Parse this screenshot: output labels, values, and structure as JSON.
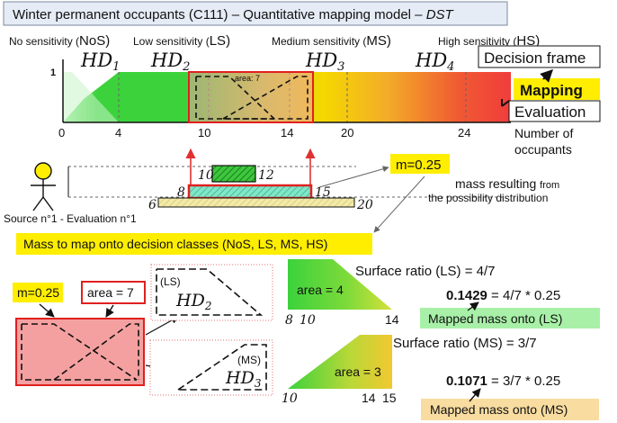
{
  "title": {
    "main": "Winter permanent occupants (C111) – Quantitative mapping model – ",
    "italic": "DST"
  },
  "sensitivity_labels": {
    "nos": {
      "prefix": "No sensitivity (",
      "code": "NoS",
      "suffix": ")"
    },
    "ls": {
      "prefix": "Low sensitivity (",
      "code": "LS",
      "suffix": ")"
    },
    "ms": {
      "prefix": "Medium sensitivity (",
      "code": "MS",
      "suffix": ")"
    },
    "hs": {
      "prefix": "High sensitivity (",
      "code": "HS",
      "suffix": ")"
    }
  },
  "hd_labels": {
    "hd1": "HD",
    "hd1_sub": "1",
    "hd2": "HD",
    "hd2_sub": "2",
    "hd3": "HD",
    "hd3_sub": "3",
    "hd4": "HD",
    "hd4_sub": "4"
  },
  "chart": {
    "y_tick": "1",
    "x_ticks": [
      "0",
      "4",
      "10",
      "14",
      "20",
      "24"
    ],
    "x_label_line1": "Number of",
    "x_label_line2": "occupants",
    "area_annotation": "area: 7"
  },
  "frame_labels": {
    "decision_frame": "Decision frame",
    "mapping": "Mapping",
    "evaluation": "Evaluation"
  },
  "source": {
    "label": "Source n°1 - Evaluation n°1",
    "top_bar": {
      "left": "10",
      "right": "12"
    },
    "mid_bar": {
      "left": "8",
      "right": "15"
    },
    "base_bar": {
      "left": "6",
      "right": "20"
    }
  },
  "mass": {
    "badge": "m=0.25",
    "note_line1_main": "mass resulting ",
    "note_line1_small": "from",
    "note_line2": "the possibility distribution"
  },
  "mapping_heading": "Mass to map onto decision classes (NoS, LS, MS, HS)",
  "lower": {
    "m_badge": "m=0.25",
    "area_badge": "area = 7",
    "ls_tag": "(LS)",
    "ms_tag": "(MS)",
    "hd2": "HD",
    "hd2_sub": "2",
    "hd3": "HD",
    "hd3_sub": "3",
    "area_ls": "area = 4",
    "area_ms": "area = 3",
    "ls_axis": [
      "8",
      "10",
      "14"
    ],
    "ms_axis": [
      "10",
      "14",
      "15"
    ],
    "ratio_ls": "Surface ratio (LS) = 4/7",
    "ratio_ms": "Surface ratio (MS) = 3/7",
    "result_ls_bold": "0.1429",
    "result_ls_rest": " = 4/7 * 0.25",
    "result_ms_bold": "0.1071",
    "result_ms_rest": " = 3/7 * 0.25",
    "mapped_ls": "Mapped mass onto (LS)",
    "mapped_ms": "Mapped mass onto (MS)"
  },
  "colors": {
    "green": "#3cd23c",
    "yellow": "#f5d800",
    "orange": "#f09a2a",
    "red": "#f03c3c",
    "title_bg": "#e6ecf6",
    "badge_yellow": "#ffee00",
    "mapped_ls_bg": "#a8f0a8",
    "mapped_ms_bg": "#f8dca0"
  }
}
